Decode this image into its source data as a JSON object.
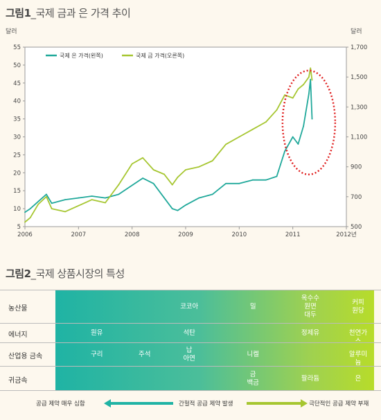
{
  "fig1": {
    "title_bold": "그림1",
    "title_rest": "_국제 금과 은 가격 추이"
  },
  "fig2": {
    "title_bold": "그림2",
    "title_rest": "_국제 상품시장의 특성"
  },
  "chart_data": {
    "type": "line",
    "left_axis_unit": "달러",
    "right_axis_unit": "달러",
    "left_ticks": [
      "55",
      "50",
      "45",
      "40",
      "35",
      "30",
      "25",
      "20",
      "15",
      "10",
      "5"
    ],
    "right_ticks": [
      "1,700",
      "1,500",
      "1,300",
      "1,100",
      "900",
      "700",
      "500"
    ],
    "x_ticks": [
      "2006",
      "2007",
      "2008",
      "2009",
      "2010",
      "2011",
      "2012년"
    ],
    "left_ylim": [
      5,
      55
    ],
    "right_ylim": [
      500,
      1700
    ],
    "legend_placement": "top-left",
    "series": [
      {
        "name": "국제 은 가격(왼쪽)",
        "axis": "left",
        "color": "#1fa89a",
        "x": [
          2006.0,
          2006.1,
          2006.25,
          2006.4,
          2006.5,
          2006.75,
          2007.0,
          2007.25,
          2007.5,
          2007.75,
          2008.0,
          2008.2,
          2008.4,
          2008.6,
          2008.75,
          2008.85,
          2009.0,
          2009.25,
          2009.5,
          2009.75,
          2010.0,
          2010.25,
          2010.5,
          2010.7,
          2010.85,
          2011.0,
          2011.1,
          2011.2,
          2011.3,
          2011.33,
          2011.36
        ],
        "values": [
          9,
          10,
          12,
          14,
          11.5,
          12.5,
          13,
          13.5,
          13,
          14,
          16.5,
          18.5,
          17,
          13,
          10,
          9.5,
          11,
          13,
          14,
          17,
          17,
          18,
          18,
          19,
          26,
          30,
          28,
          33,
          42,
          46,
          35
        ]
      },
      {
        "name": "국제 금 가격(오른쪽)",
        "axis": "right",
        "color": "#a6c630",
        "x": [
          2006.0,
          2006.1,
          2006.25,
          2006.4,
          2006.5,
          2006.75,
          2007.0,
          2007.25,
          2007.5,
          2007.75,
          2008.0,
          2008.2,
          2008.4,
          2008.6,
          2008.75,
          2008.85,
          2009.0,
          2009.25,
          2009.5,
          2009.75,
          2010.0,
          2010.25,
          2010.5,
          2010.7,
          2010.85,
          2011.0,
          2011.1,
          2011.2,
          2011.3,
          2011.33,
          2011.36
        ],
        "values": [
          530,
          560,
          650,
          700,
          620,
          600,
          640,
          680,
          660,
          780,
          920,
          960,
          880,
          850,
          780,
          830,
          880,
          900,
          940,
          1050,
          1100,
          1150,
          1200,
          1280,
          1380,
          1360,
          1420,
          1450,
          1500,
          1560,
          1480
        ]
      }
    ],
    "annotation": "dotted-red-ellipse"
  },
  "table": {
    "rows": [
      {
        "label": "농산물",
        "cells": [
          {
            "col": 0.42,
            "text": "코코아"
          },
          {
            "col": 0.62,
            "text": "밀"
          },
          {
            "col": 0.8,
            "text": "옥수수\n원면\n대두"
          },
          {
            "col": 0.95,
            "text": "커피\n원당"
          }
        ]
      },
      {
        "label": "에너지",
        "cells": [
          {
            "col": 0.13,
            "text": "원유"
          },
          {
            "col": 0.42,
            "text": "석탄"
          },
          {
            "col": 0.8,
            "text": "정제유"
          },
          {
            "col": 0.95,
            "text": "천연가스"
          }
        ]
      },
      {
        "label": "산업용 금속",
        "cells": [
          {
            "col": 0.13,
            "text": "구리"
          },
          {
            "col": 0.28,
            "text": "주석"
          },
          {
            "col": 0.42,
            "text": "납\n아연"
          },
          {
            "col": 0.62,
            "text": "니켈"
          },
          {
            "col": 0.95,
            "text": "알루미늄"
          }
        ]
      },
      {
        "label": "귀금속",
        "cells": [
          {
            "col": 0.62,
            "text": "금\n백금"
          },
          {
            "col": 0.8,
            "text": "팔라듐"
          },
          {
            "col": 0.95,
            "text": "은"
          }
        ]
      }
    ],
    "arrow_left": "공급 제약 매우 심함",
    "arrow_mid": "간헐적 공급 제약 발생",
    "arrow_right": "극단적인 공급 제약 부재",
    "colors": {
      "teal": "#1fb3a4",
      "green": "#b7dc2a"
    }
  }
}
